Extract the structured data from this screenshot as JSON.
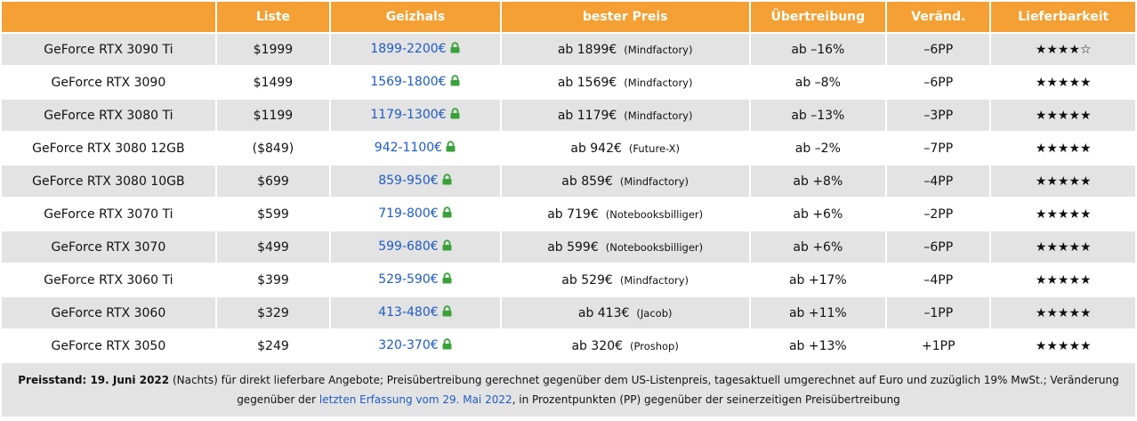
{
  "headers": [
    "",
    "Liste",
    "Geizhals",
    "bester Preis",
    "Übertreibung",
    "Veränd.",
    "Lieferbarkeit"
  ],
  "rows": [
    {
      "model": "GeForce RTX 3090 Ti",
      "list": "$1999",
      "range": "1899-2200€",
      "best": "ab 1899€",
      "shop": "(Mindfactory)",
      "exag": "ab –16%",
      "change": "–6PP",
      "stars": "★★★★☆"
    },
    {
      "model": "GeForce RTX 3090",
      "list": "$1499",
      "range": "1569-1800€",
      "best": "ab 1569€",
      "shop": "(Mindfactory)",
      "exag": "ab –8%",
      "change": "–6PP",
      "stars": "★★★★★"
    },
    {
      "model": "GeForce RTX 3080 Ti",
      "list": "$1199",
      "range": "1179-1300€",
      "best": "ab 1179€",
      "shop": "(Mindfactory)",
      "exag": "ab –13%",
      "change": "–3PP",
      "stars": "★★★★★"
    },
    {
      "model": "GeForce RTX 3080 12GB",
      "list": "($849)",
      "range": "942-1100€",
      "best": "ab 942€",
      "shop": "(Future-X)",
      "exag": "ab –2%",
      "change": "–7PP",
      "stars": "★★★★★"
    },
    {
      "model": "GeForce RTX 3080 10GB",
      "list": "$699",
      "range": "859-950€",
      "best": "ab 859€",
      "shop": "(Mindfactory)",
      "exag": "ab +8%",
      "change": "–4PP",
      "stars": "★★★★★"
    },
    {
      "model": "GeForce RTX 3070 Ti",
      "list": "$599",
      "range": "719-800€",
      "best": "ab 719€",
      "shop": "(Notebooksbilliger)",
      "exag": "ab +6%",
      "change": "–2PP",
      "stars": "★★★★★"
    },
    {
      "model": "GeForce RTX 3070",
      "list": "$499",
      "range": "599-680€",
      "best": "ab 599€",
      "shop": "(Notebooksbilliger)",
      "exag": "ab +6%",
      "change": "–6PP",
      "stars": "★★★★★"
    },
    {
      "model": "GeForce RTX 3060 Ti",
      "list": "$399",
      "range": "529-590€",
      "best": "ab 529€",
      "shop": "(Mindfactory)",
      "exag": "ab +17%",
      "change": "–4PP",
      "stars": "★★★★★"
    },
    {
      "model": "GeForce RTX 3060",
      "list": "$329",
      "range": "413-480€",
      "best": "ab 413€",
      "shop": "(Jacob)",
      "exag": "ab +11%",
      "change": "–1PP",
      "stars": "★★★★★"
    },
    {
      "model": "GeForce RTX 3050",
      "list": "$249",
      "range": "320-370€",
      "best": "ab 320€",
      "shop": "(Proshop)",
      "exag": "ab +13%",
      "change": "+1PP",
      "stars": "★★★★★"
    }
  ],
  "footer": {
    "label": "Preisstand: 19. Juni 2022",
    "text1": " (Nachts) für direkt lieferbare Angebote; Preisübertreibung gerechnet gegenüber dem US-Listenpreis, tagesaktuell umgerechnet auf Euro und zuzüglich 19% MwSt.; Veränderung gegenüber der ",
    "link": "letzten Erfassung vom 29. Mai 2022",
    "text2": ", in Prozentpunkten (PP) gegenüber der seinerzeitigen Preisübertreibung"
  },
  "colors": {
    "header": "#f4a034",
    "model": "#1b9d1b",
    "link": "#1f5bc6",
    "lock": "#3aa13a",
    "rowAlt": "#e3e3e3"
  }
}
